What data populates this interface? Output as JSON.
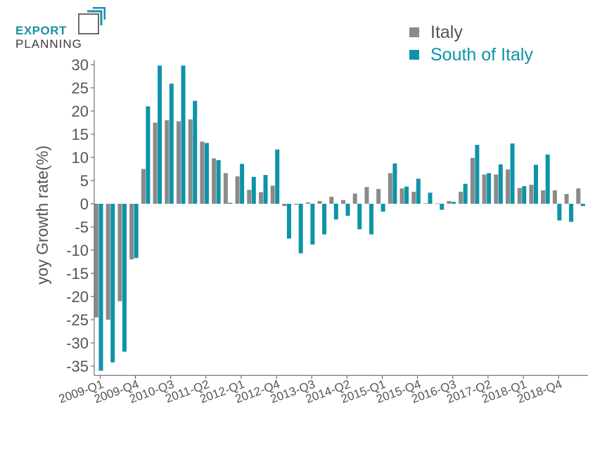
{
  "logo": {
    "line1": "EXPORT",
    "line2": "PLANNING"
  },
  "colors": {
    "italy": "#8a8a8a",
    "south": "#0e93a8",
    "axis": "#555555",
    "text": "#555555"
  },
  "chart_data": {
    "type": "bar",
    "ylabel": "yoy Growth rate(%)",
    "xlabel": "",
    "ylim": [
      -37,
      31
    ],
    "yticks": [
      30,
      25,
      20,
      15,
      10,
      5,
      0,
      -5,
      -10,
      -15,
      -20,
      -25,
      -30,
      -35
    ],
    "xtick_labels": [
      "2009-Q1",
      "2009-Q4",
      "2010-Q3",
      "2011-Q2",
      "2012-Q1",
      "2012-Q4",
      "2013-Q3",
      "2014-Q2",
      "2015-Q1",
      "2015-Q4",
      "2016-Q3",
      "2017-Q2",
      "2018-Q1",
      "2018-Q4"
    ],
    "xtick_every": 3,
    "categories": [
      "2009-Q1",
      "2009-Q2",
      "2009-Q3",
      "2009-Q4",
      "2010-Q1",
      "2010-Q2",
      "2010-Q3",
      "2010-Q4",
      "2011-Q1",
      "2011-Q2",
      "2011-Q3",
      "2011-Q4",
      "2012-Q1",
      "2012-Q2",
      "2012-Q3",
      "2012-Q4",
      "2013-Q1",
      "2013-Q2",
      "2013-Q3",
      "2013-Q4",
      "2014-Q1",
      "2014-Q2",
      "2014-Q3",
      "2014-Q4",
      "2015-Q1",
      "2015-Q2",
      "2015-Q3",
      "2015-Q4",
      "2016-Q1",
      "2016-Q2",
      "2016-Q3",
      "2016-Q4",
      "2017-Q1",
      "2017-Q2",
      "2017-Q3",
      "2017-Q4",
      "2018-Q1",
      "2018-Q2",
      "2018-Q3",
      "2018-Q4",
      "2019-Q1",
      "2019-Q2"
    ],
    "legend_position": "top-right",
    "grid": false,
    "series": [
      {
        "name": "Italy",
        "color": "#8a8a8a",
        "values": [
          -24.5,
          -25,
          -21,
          -12,
          7.5,
          17.5,
          18,
          17.8,
          18.2,
          13.4,
          9.8,
          6.6,
          5.9,
          3,
          2.5,
          3.9,
          -0.5,
          -0.2,
          0.3,
          0.6,
          1.5,
          0.8,
          2.2,
          3.6,
          3.2,
          6.6,
          3.3,
          2.6,
          0.1,
          0.1,
          0.6,
          2.6,
          9.9,
          6.3,
          6.3,
          7.4,
          3.4,
          4.1,
          2.9,
          2.9,
          2.1,
          3.3
        ]
      },
      {
        "name": "South of Italy",
        "color": "#0e93a8",
        "values": [
          -36,
          -34.2,
          -31.9,
          -11.7,
          21,
          29.8,
          25.9,
          29.8,
          22.2,
          13.1,
          9.4,
          0.2,
          8.6,
          5.8,
          6.2,
          11.7,
          -7.5,
          -10.7,
          -8.8,
          -6.6,
          -3.4,
          -2.6,
          -5.5,
          -6.6,
          -1.7,
          8.7,
          3.7,
          5.4,
          2.4,
          -1.3,
          0.4,
          4.3,
          12.7,
          6.6,
          8.5,
          13,
          3.8,
          8.4,
          10.6,
          -3.6,
          -3.9,
          -0.5
        ]
      }
    ]
  }
}
